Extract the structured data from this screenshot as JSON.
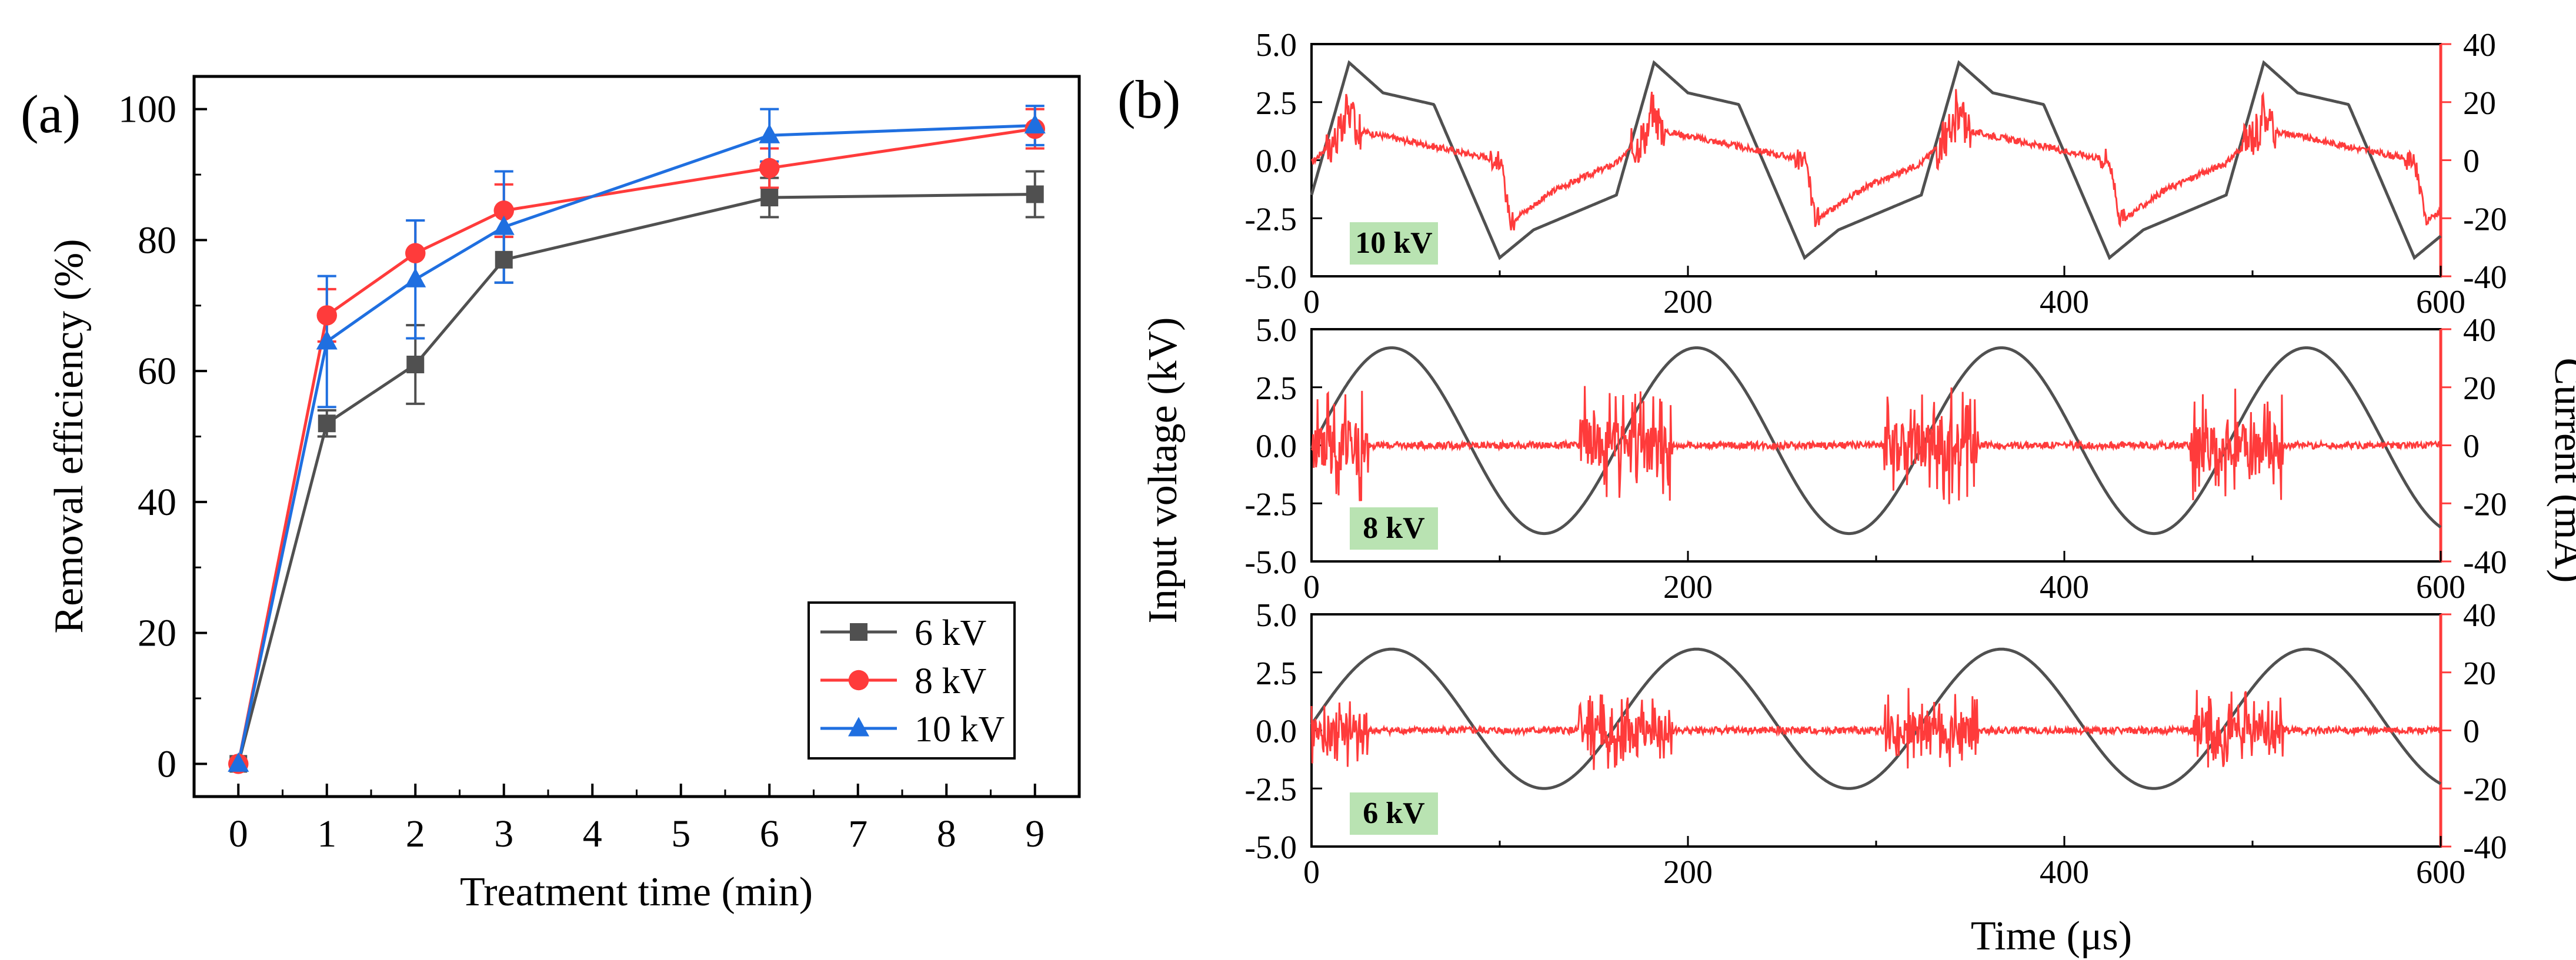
{
  "colors": {
    "gray": "#505050",
    "red": "#ff3b3b",
    "blue": "#1f6fe0",
    "tag_bg": "#b9e3b2"
  },
  "chart_data": [
    {
      "type": "line",
      "panel_label": "(a)",
      "xlabel": "Treatment time (min)",
      "ylabel": "Removal efficiency (%)",
      "xlim": [
        -0.5,
        9.5
      ],
      "ylim": [
        -5,
        105
      ],
      "xticks": [
        "0",
        "1",
        "2",
        "3",
        "4",
        "5",
        "6",
        "7",
        "8",
        "9"
      ],
      "yticks": [
        "0",
        "20",
        "40",
        "60",
        "80",
        "100"
      ],
      "x": [
        0,
        1,
        2,
        3,
        6,
        9
      ],
      "series": [
        {
          "name": "6 kV",
          "color": "#505050",
          "marker": "square",
          "values": [
            0,
            52,
            61,
            77,
            86.5,
            87
          ],
          "errors": [
            0,
            2,
            6,
            3.5,
            3,
            3.5
          ]
        },
        {
          "name": "8 kV",
          "color": "#ff3b3b",
          "marker": "circle",
          "values": [
            0,
            68.5,
            78,
            84.5,
            91,
            97
          ],
          "errors": [
            0,
            4,
            5,
            4,
            3,
            3
          ]
        },
        {
          "name": "10 kV",
          "color": "#1f6fe0",
          "marker": "triangle",
          "values": [
            0,
            64.5,
            74,
            82,
            96,
            97.5
          ],
          "errors": [
            0,
            10,
            9,
            8.5,
            4,
            3
          ]
        }
      ],
      "legend": {
        "position": "bottom-right",
        "entries": [
          "6 kV",
          "8 kV",
          "10 kV"
        ]
      }
    },
    {
      "type": "line",
      "panel_label": "(b)",
      "xlabel": "Time (μs)",
      "ylabel_left": "Input voltage (kV)",
      "ylabel_right": "Current (mA)",
      "xlim": [
        0,
        600
      ],
      "xticks": [
        "0",
        "200",
        "400",
        "600"
      ],
      "ylim_left": [
        -5,
        5
      ],
      "yticks_left": [
        "5.0",
        "2.5",
        "0.0",
        "-2.5",
        "-5.0"
      ],
      "ylim_right": [
        -40,
        40
      ],
      "yticks_right": [
        "40",
        "20",
        "0",
        "-20",
        "-40"
      ],
      "period_us": 162,
      "subplots": [
        {
          "tag": "10 kV",
          "waveform": "square-like",
          "voltage_amplitude_kv": 4.2,
          "current_peak_ma": 20,
          "current_plateau_ma": 10
        },
        {
          "tag": "8 kV",
          "waveform": "sine",
          "voltage_amplitude_kv": 4.0,
          "voltage_offset_kv": 0.2,
          "current_peak_ma": 18
        },
        {
          "tag": "6 kV",
          "waveform": "sine",
          "voltage_amplitude_kv": 3.0,
          "voltage_offset_kv": 0.5,
          "current_peak_ma": 12
        }
      ]
    }
  ]
}
